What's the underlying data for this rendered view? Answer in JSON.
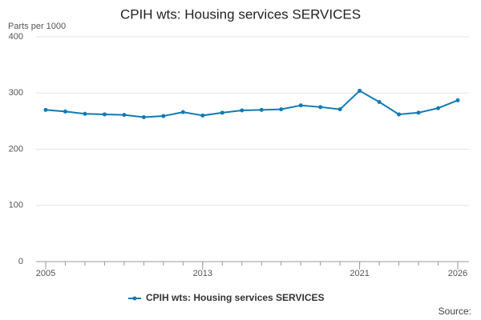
{
  "chart_data": {
    "type": "line",
    "title": "CPIH wts: Housing services SERVICES",
    "y_label": "Parts per 1000",
    "source": "Source:",
    "x": [
      2005,
      2006,
      2007,
      2008,
      2009,
      2010,
      2011,
      2012,
      2013,
      2014,
      2015,
      2016,
      2017,
      2018,
      2019,
      2020,
      2021,
      2022,
      2023,
      2024,
      2025,
      2026
    ],
    "series": [
      {
        "name": "CPIH wts: Housing services SERVICES",
        "color": "#0f7bb5",
        "values": [
          270,
          267,
          263,
          262,
          261,
          257,
          259,
          266,
          260,
          265,
          269,
          270,
          271,
          278,
          275,
          271,
          304,
          284,
          262,
          265,
          273,
          287
        ]
      }
    ],
    "xlim": [
      2005,
      2026
    ],
    "xticks": [
      2005,
      2013,
      2021,
      2026
    ],
    "ylim": [
      0,
      400
    ],
    "yticks": [
      0,
      100,
      200,
      300,
      400
    ],
    "grid": true,
    "legend": "bottom"
  }
}
